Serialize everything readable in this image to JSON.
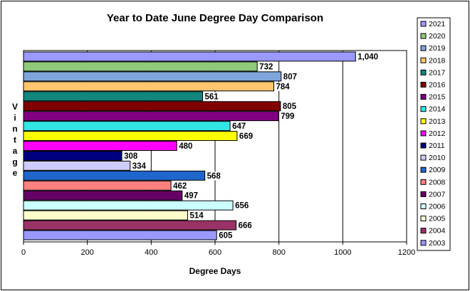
{
  "chart_data": {
    "type": "bar",
    "orientation": "horizontal",
    "title": "Year to Date June Degree Day Comparison",
    "xlabel": "Degree Days",
    "ylabel": "Vintage",
    "xlim": [
      0,
      1200
    ],
    "xticks": [
      0,
      200,
      400,
      600,
      800,
      1000,
      1200
    ],
    "grid": "vertical",
    "legend_position": "right",
    "series": [
      {
        "name": "2021",
        "value": 1040,
        "label": "1,040",
        "color": "#9999FF"
      },
      {
        "name": "2020",
        "value": 732,
        "label": "732",
        "color": "#8FC97A"
      },
      {
        "name": "2019",
        "value": 807,
        "label": "807",
        "color": "#7FA6DC"
      },
      {
        "name": "2018",
        "value": 784,
        "label": "784",
        "color": "#FFC66E"
      },
      {
        "name": "2017",
        "value": 561,
        "label": "561",
        "color": "#12857C"
      },
      {
        "name": "2016",
        "value": 805,
        "label": "805",
        "color": "#800000"
      },
      {
        "name": "2015",
        "value": 799,
        "label": "799",
        "color": "#800080"
      },
      {
        "name": "2014",
        "value": 647,
        "label": "647",
        "color": "#33E6E6"
      },
      {
        "name": "2013",
        "value": 669,
        "label": "669",
        "color": "#FFFF00"
      },
      {
        "name": "2012",
        "value": 480,
        "label": "480",
        "color": "#FF00FF"
      },
      {
        "name": "2011",
        "value": 308,
        "label": "308",
        "color": "#000080"
      },
      {
        "name": "2010",
        "value": 334,
        "label": "334",
        "color": "#CCCCFF"
      },
      {
        "name": "2009",
        "value": 568,
        "label": "568",
        "color": "#1F66CC"
      },
      {
        "name": "2008",
        "value": 462,
        "label": "462",
        "color": "#FF8080"
      },
      {
        "name": "2007",
        "value": 497,
        "label": "497",
        "color": "#660066"
      },
      {
        "name": "2006",
        "value": 656,
        "label": "656",
        "color": "#CCFFFF"
      },
      {
        "name": "2005",
        "value": 514,
        "label": "514",
        "color": "#FFFFCC"
      },
      {
        "name": "2004",
        "value": 666,
        "label": "666",
        "color": "#993366"
      },
      {
        "name": "2003",
        "value": 605,
        "label": "605",
        "color": "#9999FF"
      }
    ]
  }
}
